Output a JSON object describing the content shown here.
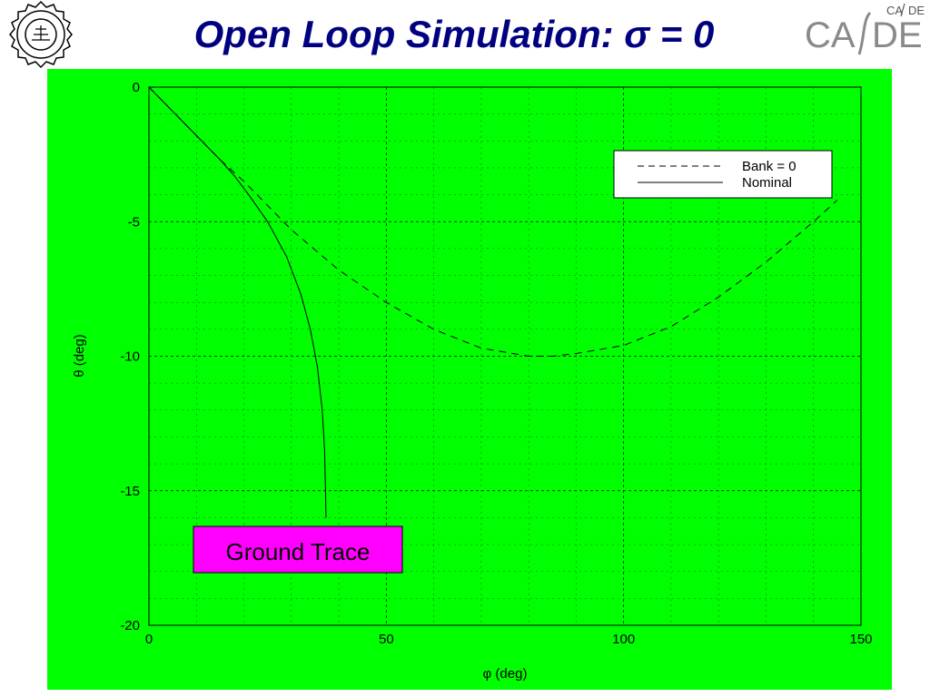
{
  "slide": {
    "title": "Open Loop Simulation: σ = 0",
    "logo_left_text": "INDIAN INSTITUTE OF TECHNOLOGY BOMBAY",
    "logo_right_text": "CADE",
    "logo_right_small": "CA/DE"
  },
  "annotation": {
    "label": "Ground Trace",
    "fill": "#ff00ff"
  },
  "colors": {
    "plot_background": "#00ff00",
    "title": "#000080",
    "line": "#000000"
  },
  "chart_data": {
    "type": "line",
    "title": "",
    "xlabel": "φ (deg)",
    "ylabel": "θ (deg)",
    "xlim": [
      0,
      150
    ],
    "ylim": [
      -20,
      0
    ],
    "x_ticks": [
      0,
      50,
      100,
      150
    ],
    "y_ticks": [
      0,
      -5,
      -10,
      -15,
      -20
    ],
    "grid": true,
    "legend_position": "top-right",
    "series": [
      {
        "name": "Bank = 0",
        "style": "dashed",
        "points": [
          [
            0,
            0
          ],
          [
            5,
            -0.9
          ],
          [
            10,
            -1.8
          ],
          [
            15,
            -2.7
          ],
          [
            20,
            -3.5
          ],
          [
            25,
            -4.4
          ],
          [
            30,
            -5.3
          ],
          [
            40,
            -6.8
          ],
          [
            50,
            -8.0
          ],
          [
            60,
            -9.0
          ],
          [
            70,
            -9.7
          ],
          [
            80,
            -10.0
          ],
          [
            85,
            -10.0
          ],
          [
            90,
            -9.9
          ],
          [
            100,
            -9.6
          ],
          [
            110,
            -8.9
          ],
          [
            120,
            -7.8
          ],
          [
            130,
            -6.5
          ],
          [
            140,
            -5.0
          ],
          [
            145,
            -4.2
          ]
        ]
      },
      {
        "name": "Nominal",
        "style": "solid",
        "points": [
          [
            0,
            0
          ],
          [
            5,
            -0.9
          ],
          [
            10,
            -1.8
          ],
          [
            15,
            -2.7
          ],
          [
            18,
            -3.3
          ],
          [
            21,
            -4.0
          ],
          [
            25,
            -5.0
          ],
          [
            29,
            -6.3
          ],
          [
            32,
            -7.7
          ],
          [
            34,
            -9.0
          ],
          [
            35.5,
            -10.4
          ],
          [
            36.5,
            -12.0
          ],
          [
            37,
            -13.5
          ],
          [
            37.2,
            -15.0
          ],
          [
            37.3,
            -16.0
          ]
        ]
      }
    ]
  }
}
